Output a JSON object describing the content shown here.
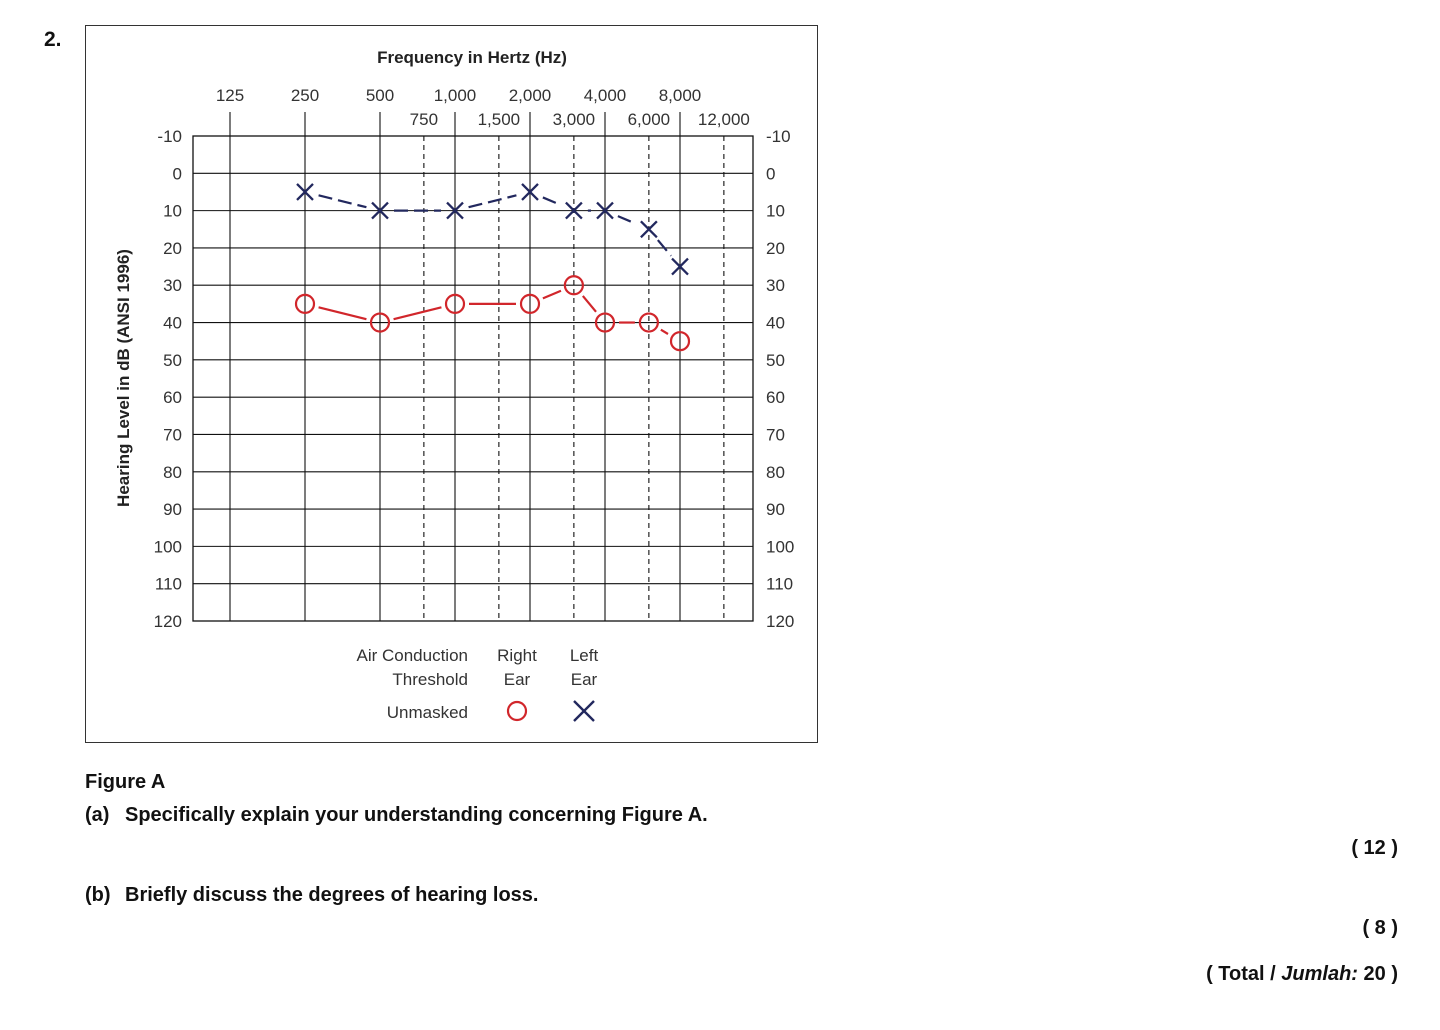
{
  "question_number": "2.",
  "chart_data": {
    "type": "line",
    "title": "Frequency in Hertz (Hz)",
    "ylabel": "Hearing Level in dB (ANSI 1996)",
    "x_ticks_major": [
      "125",
      "250",
      "500",
      "1,000",
      "2,000",
      "4,000",
      "8,000"
    ],
    "x_ticks_minor": [
      "750",
      "1,500",
      "3,000",
      "6,000",
      "12,000"
    ],
    "y_ticks": [
      "-10",
      "0",
      "10",
      "20",
      "30",
      "40",
      "50",
      "60",
      "70",
      "80",
      "90",
      "100",
      "110",
      "120"
    ],
    "ylim": [
      -10,
      120
    ],
    "y_inverted": true,
    "series": [
      {
        "name": "Right Ear",
        "symbol": "O",
        "color": "#d1262b",
        "x": [
          "250",
          "500",
          "1,000",
          "2,000",
          "3,000",
          "4,000",
          "6,000",
          "8,000"
        ],
        "values": [
          35,
          40,
          35,
          35,
          30,
          40,
          40,
          45
        ]
      },
      {
        "name": "Left Ear",
        "symbol": "X",
        "color": "#22285e",
        "x": [
          "250",
          "500",
          "1,000",
          "2,000",
          "3,000",
          "4,000",
          "6,000",
          "8,000"
        ],
        "values": [
          5,
          10,
          10,
          5,
          10,
          10,
          15,
          25
        ]
      }
    ],
    "legend": {
      "col1_line1": "Air Conduction",
      "col1_line2": "Threshold",
      "col2_line1": "Right",
      "col2_line2": "Ear",
      "col3_line1": "Left",
      "col3_line2": "Ear",
      "row_label": "Unmasked"
    }
  },
  "caption": "Figure A",
  "questions": [
    {
      "label": "(a)",
      "text": "Specifically explain your understanding concerning Figure A.",
      "marks": "( 12 )"
    },
    {
      "label": "(b)",
      "text": "Briefly discuss the degrees of hearing loss.",
      "marks": "( 8 )"
    }
  ],
  "total": {
    "prefix": "( Total / ",
    "italic": "Jumlah:",
    "suffix": " 20 )"
  }
}
